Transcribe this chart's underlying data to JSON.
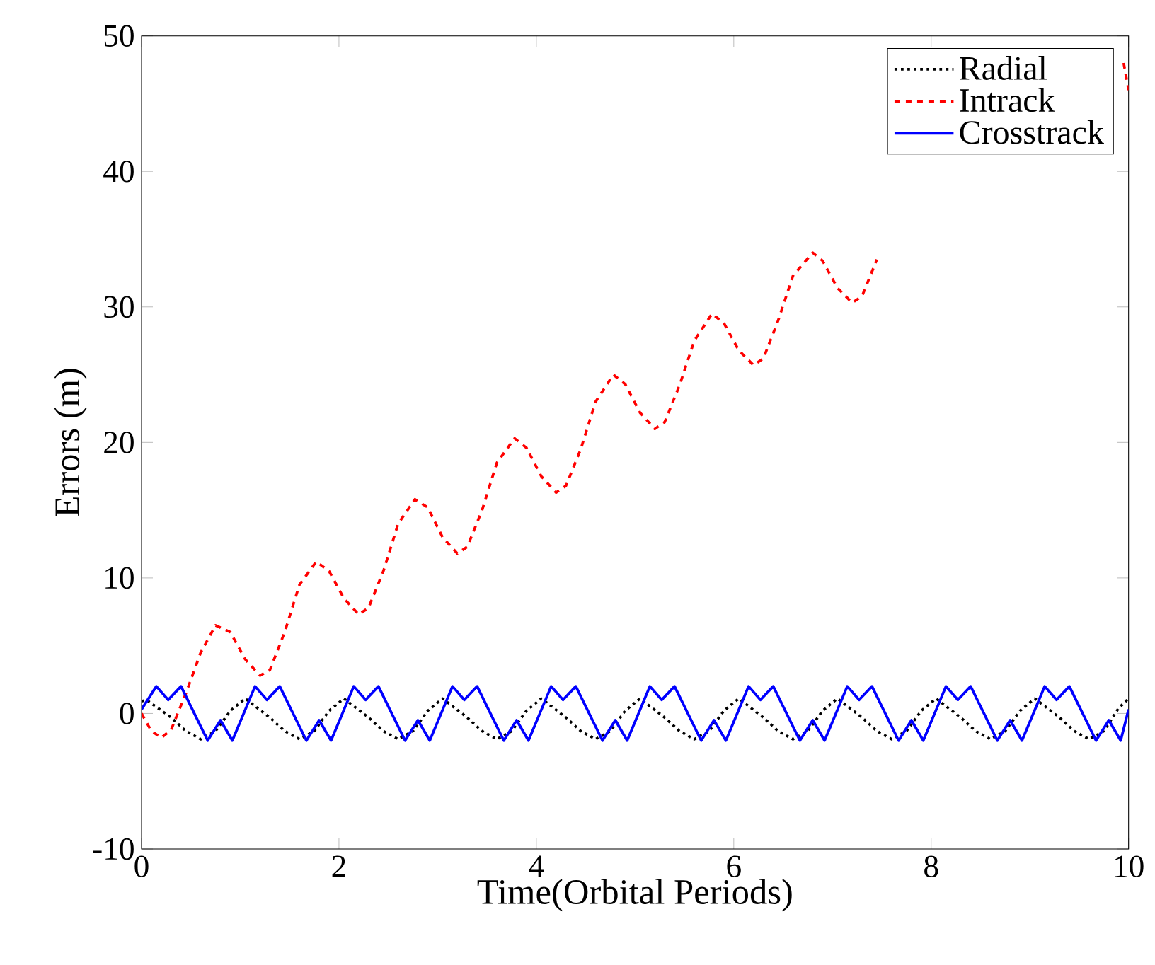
{
  "chart_data": {
    "type": "line",
    "xlabel": "Time(Orbital Periods)",
    "ylabel": "Errors (m)",
    "xlim": [
      0,
      10
    ],
    "ylim": [
      -10,
      50
    ],
    "xticks": [
      0,
      2,
      4,
      6,
      8,
      10
    ],
    "yticks": [
      -10,
      0,
      10,
      20,
      30,
      40,
      50
    ],
    "grid": false,
    "legend": "top right",
    "marker": "none",
    "series": [
      {
        "name": "Radial",
        "color": "#000000",
        "line_style": "dotted",
        "x": [
          0,
          0.05,
          0.3,
          0.45,
          0.6,
          0.75,
          0.9,
          1.05,
          1.3,
          1.45,
          1.6,
          1.75,
          1.9,
          2.05,
          2.3,
          2.45,
          2.6,
          2.75,
          2.9,
          3.05,
          3.3,
          3.45,
          3.6,
          3.75,
          3.9,
          4.05,
          4.3,
          4.45,
          4.6,
          4.75,
          4.9,
          5.05,
          5.3,
          5.45,
          5.6,
          5.75,
          5.9,
          6.05,
          6.3,
          6.45,
          6.6,
          6.75,
          6.9,
          7.05,
          7.3,
          7.45,
          7.6,
          7.75,
          7.9,
          8.05,
          8.3,
          8.45,
          8.6,
          8.75,
          8.9,
          9.05,
          9.3,
          9.45,
          9.6,
          9.75,
          9.9,
          10
        ],
        "values": [
          0.9,
          1.0,
          -0.3,
          -1.3,
          -1.9,
          -1.3,
          0.2,
          1.1,
          -0.3,
          -1.3,
          -1.9,
          -1.3,
          0.2,
          1.1,
          -0.3,
          -1.3,
          -1.9,
          -1.3,
          0.2,
          1.1,
          -0.3,
          -1.3,
          -1.9,
          -1.3,
          0.2,
          1.1,
          -0.3,
          -1.3,
          -1.9,
          -1.3,
          0.2,
          1.1,
          -0.3,
          -1.3,
          -1.9,
          -1.3,
          0.2,
          1.1,
          -0.3,
          -1.3,
          -1.9,
          -1.3,
          0.2,
          1.1,
          -0.3,
          -1.3,
          -1.9,
          -1.3,
          0.2,
          1.1,
          -0.3,
          -1.3,
          -1.9,
          -1.3,
          0.2,
          1.1,
          -0.3,
          -1.3,
          -1.9,
          -1.3,
          0.4,
          1.1
        ]
      },
      {
        "name": "Intrack",
        "color": "#ff0000",
        "line_style": "dashed",
        "x": [
          0,
          0.1,
          0.2,
          0.3,
          0.45,
          0.6,
          0.75,
          0.9,
          1.05,
          1.2,
          1.3,
          1.45,
          1.6,
          1.77,
          1.9,
          2.05,
          2.2,
          2.3,
          2.45,
          2.6,
          2.77,
          2.9,
          3.05,
          3.2,
          3.3,
          3.45,
          3.6,
          3.78,
          3.9,
          4.05,
          4.2,
          4.3,
          4.45,
          4.6,
          4.78,
          4.9,
          5.05,
          5.2,
          5.3,
          5.45,
          5.6,
          5.78,
          5.9,
          6.05,
          6.2,
          6.3,
          6.45,
          6.6,
          6.8,
          6.9,
          7.05,
          7.2,
          7.3,
          7.45,
          8.7,
          9.95,
          10
        ],
        "values": [
          0,
          -1.3,
          -1.8,
          -1.2,
          1.5,
          4.5,
          6.5,
          6,
          4,
          2.8,
          3.2,
          6,
          9.5,
          11.2,
          10.5,
          8.5,
          7.3,
          7.8,
          10.5,
          14,
          15.8,
          15.2,
          13,
          11.8,
          12.3,
          15,
          18.5,
          20.3,
          19.6,
          17.5,
          16.3,
          16.8,
          19.5,
          23,
          25,
          24.3,
          22.2,
          21,
          21.5,
          24.2,
          27.5,
          29.5,
          28.8,
          26.8,
          25.7,
          26.2,
          29,
          32.3,
          34,
          33.4,
          31.4,
          30.3,
          30.8,
          33.5,
          null,
          48,
          46
        ]
      },
      {
        "name": "Crosstrack",
        "color": "#0000ff",
        "line_style": "solid",
        "x": [
          0,
          0.15,
          0.27,
          0.4,
          0.67,
          0.8,
          0.92,
          1.15,
          1.27,
          1.4,
          1.67,
          1.8,
          1.92,
          2.15,
          2.27,
          2.4,
          2.67,
          2.8,
          2.92,
          3.15,
          3.27,
          3.4,
          3.67,
          3.8,
          3.92,
          4.15,
          4.27,
          4.4,
          4.67,
          4.8,
          4.92,
          5.15,
          5.27,
          5.4,
          5.67,
          5.8,
          5.92,
          6.15,
          6.27,
          6.4,
          6.67,
          6.8,
          6.92,
          7.15,
          7.27,
          7.4,
          7.67,
          7.8,
          7.92,
          8.15,
          8.27,
          8.4,
          8.67,
          8.8,
          8.92,
          9.15,
          9.27,
          9.4,
          9.67,
          9.8,
          9.92,
          10
        ],
        "values": [
          0.3,
          2,
          1,
          2,
          -2,
          -0.5,
          -2,
          2,
          1,
          2,
          -2,
          -0.5,
          -2,
          2,
          1,
          2,
          -2,
          -0.5,
          -2,
          2,
          1,
          2,
          -2,
          -0.5,
          -2,
          2,
          1,
          2,
          -2,
          -0.5,
          -2,
          2,
          1,
          2,
          -2,
          -0.5,
          -2,
          2,
          1,
          2,
          -2,
          -0.5,
          -2,
          2,
          1,
          2,
          -2,
          -0.5,
          -2,
          2,
          1,
          2,
          -2,
          -0.5,
          -2,
          2,
          1,
          2,
          -2,
          -0.5,
          -2,
          0.3
        ]
      }
    ]
  }
}
